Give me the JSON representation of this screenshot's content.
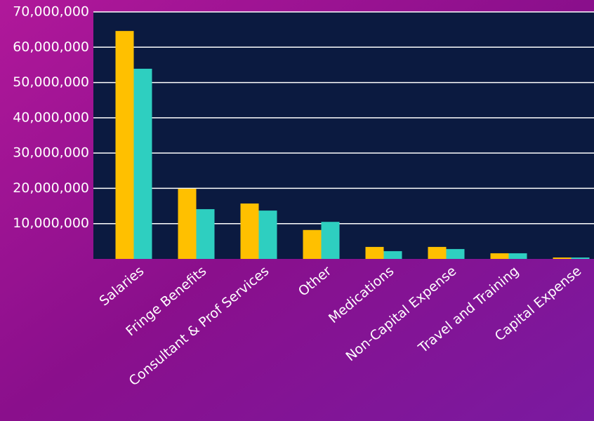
{
  "chart_data": {
    "type": "bar",
    "categories": [
      "Salaries",
      "Fringe Benefits",
      "Consultant & Prof Services",
      "Other",
      "Medications",
      "Non-Capital Expense",
      "Travel and Training",
      "Capital Expense"
    ],
    "series": [
      {
        "color": "#ffc000",
        "values": [
          64600000,
          19900000,
          15700000,
          8200000,
          3400000,
          3400000,
          1600000,
          400000
        ]
      },
      {
        "color": "#2ecfc0",
        "values": [
          53900000,
          14100000,
          13700000,
          10500000,
          2200000,
          2800000,
          1600000,
          400000
        ]
      }
    ],
    "ylim": [
      0,
      70000000
    ],
    "yticks": [
      {
        "value": 10000000,
        "label": "10,000,000"
      },
      {
        "value": 20000000,
        "label": "20,000,000"
      },
      {
        "value": 30000000,
        "label": "30,000,000"
      },
      {
        "value": 40000000,
        "label": "40,000,000"
      },
      {
        "value": 50000000,
        "label": "50,000,000"
      },
      {
        "value": 60000000,
        "label": "60,000,000"
      },
      {
        "value": 70000000,
        "label": "70,000,000"
      }
    ],
    "grid": true
  }
}
